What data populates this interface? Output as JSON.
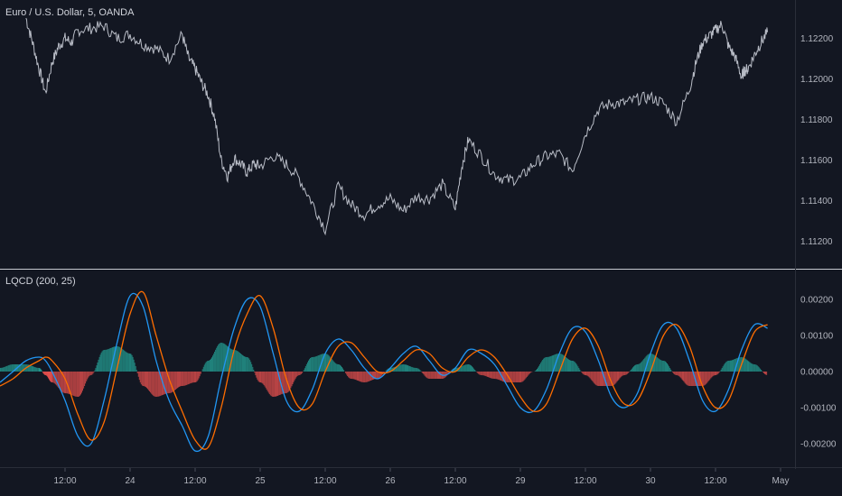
{
  "main_title": "Euro / U.S. Dollar, 5, OANDA",
  "indicator_title": "LQCD (200, 25)",
  "colors": {
    "background": "#131722",
    "price_line": "#b8bcc6",
    "fast_line": "#2196f3",
    "slow_line": "#ff6d00",
    "hist_positive": "#26a69a",
    "hist_negative": "#ef5350",
    "separator": "#c7cad1"
  },
  "chart_data": [
    {
      "type": "line",
      "title": "Euro / U.S. Dollar, 5, OANDA",
      "ylim": [
        1.111,
        1.123
      ],
      "yticks": [
        "1.12200",
        "1.12000",
        "1.11800",
        "1.11600",
        "1.11400",
        "1.11200"
      ],
      "ytick_values": [
        1.122,
        1.12,
        1.118,
        1.116,
        1.114,
        1.112
      ],
      "xticks": [
        "12:00",
        "24",
        "12:00",
        "25",
        "12:00",
        "26",
        "12:00",
        "29",
        "12:00",
        "30",
        "12:00",
        "May"
      ],
      "xtick_positions": [
        0.5,
        1.0,
        1.5,
        2.0,
        2.5,
        3.0,
        3.5,
        4.0,
        4.5,
        5.0,
        5.5,
        6.0
      ],
      "x": [
        0.2,
        0.25,
        0.3,
        0.35,
        0.4,
        0.45,
        0.5,
        0.55,
        0.6,
        0.7,
        0.8,
        0.9,
        1.0,
        1.1,
        1.2,
        1.3,
        1.4,
        1.45,
        1.5,
        1.55,
        1.6,
        1.65,
        1.7,
        1.75,
        1.8,
        1.85,
        1.9,
        1.95,
        2.0,
        2.1,
        2.2,
        2.3,
        2.4,
        2.5,
        2.6,
        2.7,
        2.8,
        2.9,
        3.0,
        3.1,
        3.2,
        3.3,
        3.4,
        3.5,
        3.55,
        3.6,
        3.7,
        3.8,
        3.9,
        4.0,
        4.1,
        4.2,
        4.3,
        4.4,
        4.5,
        4.6,
        4.7,
        4.8,
        4.9,
        5.0,
        5.1,
        5.2,
        5.3,
        5.35,
        5.4,
        5.45,
        5.5,
        5.55,
        5.6,
        5.65,
        5.7,
        5.72,
        5.75,
        5.8,
        5.85,
        5.9
      ],
      "series": [
        {
          "values": [
            1.123,
            1.1218,
            1.1205,
            1.1193,
            1.1208,
            1.1216,
            1.122,
            1.1218,
            1.1224,
            1.1225,
            1.1226,
            1.122,
            1.1222,
            1.1217,
            1.1215,
            1.121,
            1.1222,
            1.121,
            1.1205,
            1.1198,
            1.1192,
            1.1181,
            1.116,
            1.1152,
            1.1161,
            1.1158,
            1.1154,
            1.1158,
            1.1157,
            1.1162,
            1.1158,
            1.1151,
            1.1139,
            1.1126,
            1.1147,
            1.1138,
            1.1133,
            1.1138,
            1.1141,
            1.1135,
            1.1142,
            1.1141,
            1.1148,
            1.1136,
            1.1157,
            1.117,
            1.1162,
            1.1153,
            1.115,
            1.1151,
            1.1158,
            1.1162,
            1.1163,
            1.1155,
            1.1173,
            1.1185,
            1.1188,
            1.1188,
            1.119,
            1.1191,
            1.1188,
            1.1179,
            1.1195,
            1.1208,
            1.1218,
            1.1221,
            1.1224,
            1.1227,
            1.1216,
            1.1211,
            1.1201,
            1.1204,
            1.1205,
            1.1212,
            1.1218,
            1.1223
          ]
        }
      ]
    },
    {
      "type": "line",
      "title": "LQCD (200, 25)",
      "ylim": [
        -0.0025,
        0.0025
      ],
      "yticks": [
        "0.00200",
        "0.00100",
        "0.00000",
        "-0.00100",
        "-0.00200"
      ],
      "ytick_values": [
        0.002,
        0.001,
        0.0,
        -0.001,
        -0.002
      ],
      "x": [
        0.0,
        0.1,
        0.2,
        0.3,
        0.35,
        0.4,
        0.5,
        0.6,
        0.7,
        0.8,
        0.9,
        1.0,
        1.1,
        1.2,
        1.3,
        1.4,
        1.5,
        1.6,
        1.7,
        1.8,
        1.9,
        2.0,
        2.1,
        2.2,
        2.3,
        2.4,
        2.5,
        2.6,
        2.7,
        2.8,
        2.9,
        3.0,
        3.1,
        3.2,
        3.3,
        3.4,
        3.5,
        3.6,
        3.7,
        3.8,
        3.9,
        4.0,
        4.1,
        4.2,
        4.3,
        4.4,
        4.5,
        4.6,
        4.7,
        4.8,
        4.9,
        5.0,
        5.1,
        5.2,
        5.3,
        5.4,
        5.5,
        5.6,
        5.7,
        5.8,
        5.9
      ],
      "series": [
        {
          "values": [
            -0.0003,
            0.0,
            0.0003,
            0.0004,
            0.0003,
            0.0,
            -0.0008,
            -0.0018,
            -0.002,
            -0.0008,
            0.0008,
            0.0021,
            0.0018,
            0.0003,
            -0.0008,
            -0.0015,
            -0.0022,
            -0.0018,
            -0.0002,
            0.0012,
            0.002,
            0.0018,
            0.0005,
            -0.0008,
            -0.0011,
            -0.0005,
            0.0005,
            0.0009,
            0.0006,
            0.0001,
            -0.0002,
            0.0001,
            0.0005,
            0.0007,
            0.0003,
            -0.0001,
            0.0001,
            0.0006,
            0.0005,
            0.0002,
            -0.0004,
            -0.001,
            -0.0011,
            -0.0005,
            0.0005,
            0.0012,
            0.0011,
            0.0003,
            -0.0007,
            -0.001,
            -0.0006,
            0.0005,
            0.0013,
            0.0012,
            0.0003,
            -0.0008,
            -0.0011,
            -0.0005,
            0.0006,
            0.0013,
            0.0012
          ]
        },
        {
          "values": [
            -0.0004,
            -0.0002,
            0.0001,
            0.0003,
            0.0004,
            0.0003,
            -0.0002,
            -0.0012,
            -0.0019,
            -0.0014,
            0.0001,
            0.0016,
            0.0022,
            0.001,
            -0.0002,
            -0.0011,
            -0.0019,
            -0.0021,
            -0.001,
            0.0006,
            0.0016,
            0.0021,
            0.0012,
            -0.0002,
            -0.001,
            -0.0009,
            0.0,
            0.0007,
            0.0008,
            0.0004,
            0.0,
            0.0,
            0.0003,
            0.0006,
            0.0005,
            0.0001,
            0.0,
            0.0004,
            0.0006,
            0.0004,
            -0.0001,
            -0.0007,
            -0.0011,
            -0.0009,
            0.0,
            0.0009,
            0.0012,
            0.0007,
            -0.0003,
            -0.0009,
            -0.0008,
            0.0,
            0.001,
            0.0013,
            0.0007,
            -0.0004,
            -0.001,
            -0.0008,
            0.0002,
            0.0011,
            0.0013
          ]
        },
        {
          "type": "histogram",
          "values": [
            0.0001,
            0.0002,
            0.0002,
            0.0001,
            -0.0001,
            -0.0003,
            -0.0006,
            -0.0007,
            -0.0001,
            0.0006,
            0.0007,
            0.0005,
            -0.0004,
            -0.0007,
            -0.0006,
            -0.0004,
            -0.0003,
            0.0003,
            0.0008,
            0.0006,
            0.0004,
            -0.0003,
            -0.0007,
            -0.0006,
            -0.0001,
            0.0004,
            0.0005,
            0.0002,
            -0.0002,
            -0.0003,
            -0.0002,
            0.0001,
            0.0002,
            0.0001,
            -0.0002,
            -0.0002,
            0.0001,
            0.0002,
            -0.0001,
            -0.0002,
            -0.0003,
            -0.0003,
            0.0,
            0.0004,
            0.0005,
            0.0003,
            -0.0001,
            -0.0004,
            -0.0004,
            -0.0001,
            0.0002,
            0.0005,
            0.0003,
            -0.0001,
            -0.0004,
            -0.0004,
            -0.0001,
            0.0003,
            0.0004,
            0.0002,
            -0.0001
          ]
        }
      ]
    }
  ]
}
